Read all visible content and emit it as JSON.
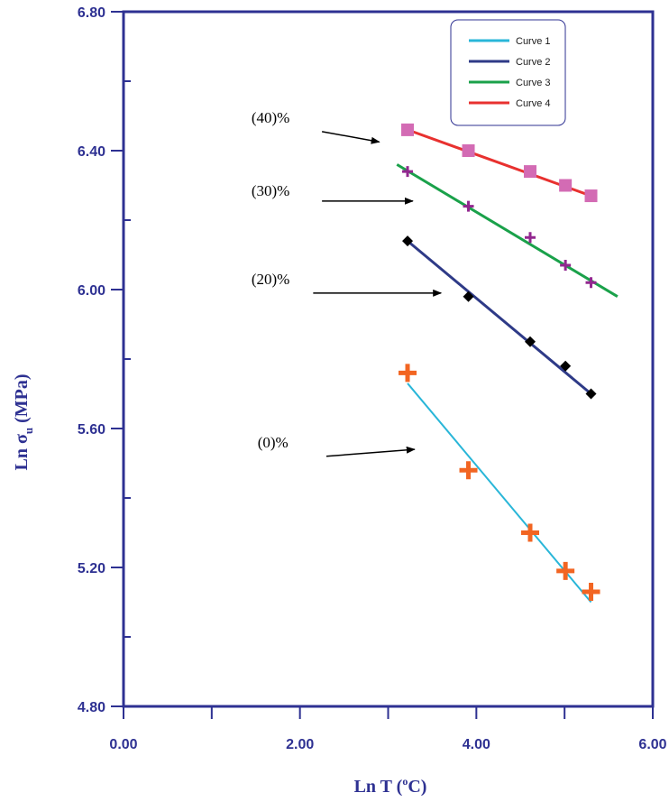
{
  "chart_data": {
    "type": "line",
    "title": "",
    "xlabel": "Ln T (",
    "xlabel_sup": "o",
    "xlabel_end": "C)",
    "ylabel": "Ln σ",
    "ylabel_sub": "u",
    "ylabel_end": " (MPa)",
    "xlim": [
      0,
      6
    ],
    "ylim": [
      4.8,
      6.8
    ],
    "x_ticks": [
      "0.00",
      "2.00",
      "4.00",
      "6.00"
    ],
    "y_ticks": [
      "4.80",
      "5.20",
      "5.60",
      "6.00",
      "6.40",
      "6.80"
    ],
    "legend_position": "top-right",
    "series": [
      {
        "name": "Curve 1",
        "color": "#29b6d8",
        "marker": "plus-bold",
        "marker_color": "#f26522",
        "points": [
          [
            3.22,
            5.76
          ],
          [
            3.91,
            5.48
          ],
          [
            4.61,
            5.3
          ],
          [
            5.01,
            5.19
          ],
          [
            5.3,
            5.13
          ]
        ],
        "fit": [
          [
            3.22,
            5.73
          ],
          [
            5.3,
            5.1
          ]
        ]
      },
      {
        "name": "Curve 2",
        "color": "#2e3a87",
        "marker": "diamond",
        "marker_color": "#000000",
        "points": [
          [
            3.22,
            6.14
          ],
          [
            3.91,
            5.98
          ],
          [
            4.61,
            5.85
          ],
          [
            5.01,
            5.78
          ],
          [
            5.3,
            5.7
          ]
        ],
        "fit": [
          [
            3.22,
            6.14
          ],
          [
            5.3,
            5.7
          ]
        ]
      },
      {
        "name": "Curve 3",
        "color": "#1aa14a",
        "marker": "plus",
        "marker_color": "#92278f",
        "points": [
          [
            3.22,
            6.34
          ],
          [
            3.91,
            6.24
          ],
          [
            4.61,
            6.15
          ],
          [
            5.01,
            6.07
          ],
          [
            5.3,
            6.02
          ]
        ],
        "fit": [
          [
            3.1,
            6.36
          ],
          [
            5.6,
            5.98
          ]
        ]
      },
      {
        "name": "Curve 4",
        "color": "#e8312f",
        "marker": "square",
        "marker_color": "#d36bb4",
        "points": [
          [
            3.22,
            6.46
          ],
          [
            3.91,
            6.4
          ],
          [
            4.61,
            6.34
          ],
          [
            5.01,
            6.3
          ],
          [
            5.3,
            6.27
          ]
        ],
        "fit": [
          [
            3.22,
            6.46
          ],
          [
            5.3,
            6.27
          ]
        ]
      }
    ],
    "annotations": [
      {
        "text": "(40)%",
        "label_x": 1.45,
        "label_y": 6.48,
        "arrow_from": [
          2.25,
          6.455
        ],
        "arrow_to": [
          2.9,
          6.425
        ]
      },
      {
        "text": "(30)%",
        "label_x": 1.45,
        "label_y": 6.27,
        "arrow_from": [
          2.25,
          6.255
        ],
        "arrow_to": [
          3.28,
          6.255
        ]
      },
      {
        "text": "(20)%",
        "label_x": 1.45,
        "label_y": 6.015,
        "arrow_from": [
          2.15,
          5.99
        ],
        "arrow_to": [
          3.6,
          5.99
        ]
      },
      {
        "text": "(0)%",
        "label_x": 1.52,
        "label_y": 5.545,
        "arrow_from": [
          2.3,
          5.52
        ],
        "arrow_to": [
          3.3,
          5.54
        ]
      }
    ]
  }
}
